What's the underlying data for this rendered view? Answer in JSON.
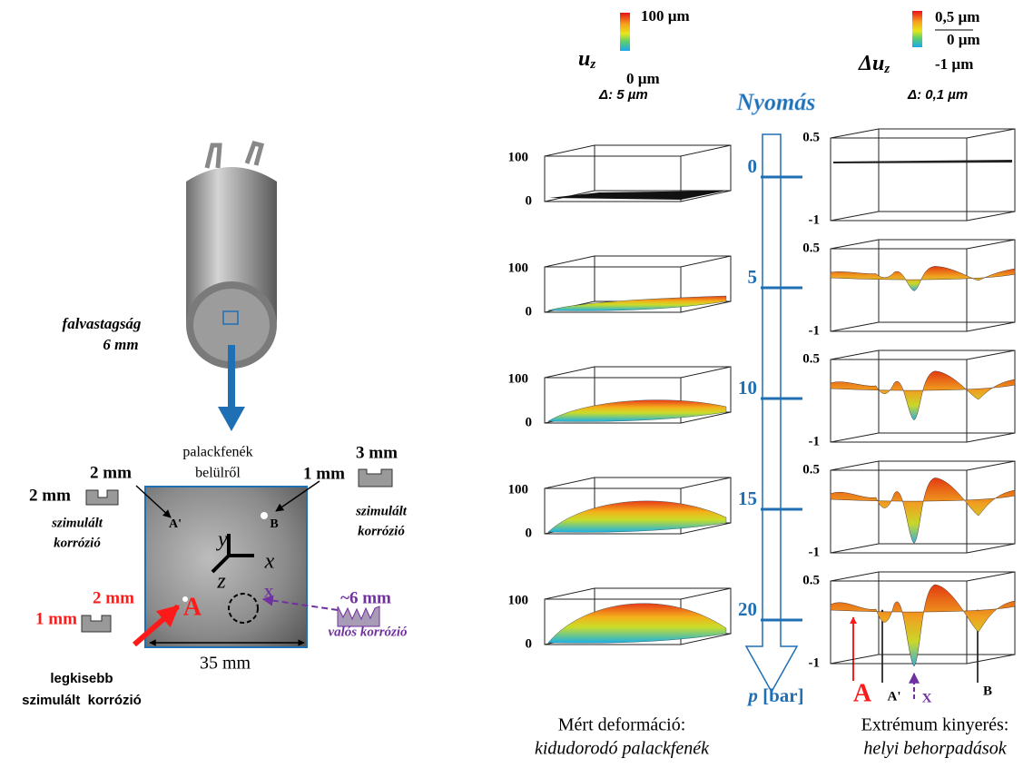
{
  "source": {
    "wall_label": "falvastagság",
    "wall_value": "6 mm"
  },
  "sample": {
    "title_line1": "palackfenék",
    "title_line2": "belülről",
    "width": "35 mm",
    "points": {
      "a": "A",
      "a_prime": "A'",
      "b": "B",
      "x": "X"
    },
    "axes": {
      "x": "x",
      "y": "y",
      "z": "z"
    }
  },
  "sim_left": {
    "width": "2 mm",
    "depth": "2 mm",
    "label_line1": "szimulált",
    "label_line2": "korrózió"
  },
  "sim_right": {
    "width": "3 mm",
    "depth": "1 mm",
    "label_line1": "szimulált",
    "label_line2": "korrózió"
  },
  "sim_smallest": {
    "width": "2 mm",
    "depth": "1 mm",
    "label_line1": "legkisebb",
    "label_line2": "szimulált  korrózió"
  },
  "real": {
    "width": "~6 mm",
    "label": "valós korrózió"
  },
  "colorbar_uz": {
    "max": "100 µm",
    "min": "0 µm",
    "symbol": "u",
    "subscript": "z",
    "resolution": "Δ: 5 µm"
  },
  "colorbar_duz": {
    "max": "0,5 µm",
    "zero": "0 µm",
    "min": "-1 µm",
    "symbol": "Δu",
    "subscript": "z",
    "resolution": "Δ: 0,1 µm"
  },
  "pressure": {
    "title": "Nyomás",
    "levels": [
      "0",
      "5",
      "10",
      "15",
      "20"
    ],
    "symbol": "p",
    "unit": "[bar]"
  },
  "rows": [
    {
      "uz_top": "100",
      "uz_bottom": "0",
      "duz_top": "0.5",
      "duz_bottom": "-1"
    },
    {
      "uz_top": "100",
      "uz_bottom": "0",
      "duz_top": "0.5",
      "duz_bottom": "-1"
    },
    {
      "uz_top": "100",
      "uz_bottom": "0",
      "duz_top": "0.5",
      "duz_bottom": "-1"
    },
    {
      "uz_top": "100",
      "uz_bottom": "0",
      "duz_top": "0.5",
      "duz_bottom": "-1"
    },
    {
      "uz_top": "100",
      "uz_bottom": "0",
      "duz_top": "0.5",
      "duz_bottom": "-1"
    }
  ],
  "markers": {
    "a": "A",
    "a_prime": "A'",
    "x": "X",
    "b": "B"
  },
  "captions": {
    "left_line1": "Mért deformáció:",
    "left_line2": "kidudorodó palackfenék",
    "right_line1": "Extrémum kinyerés:",
    "right_line2": "helyi behorpadások"
  }
}
